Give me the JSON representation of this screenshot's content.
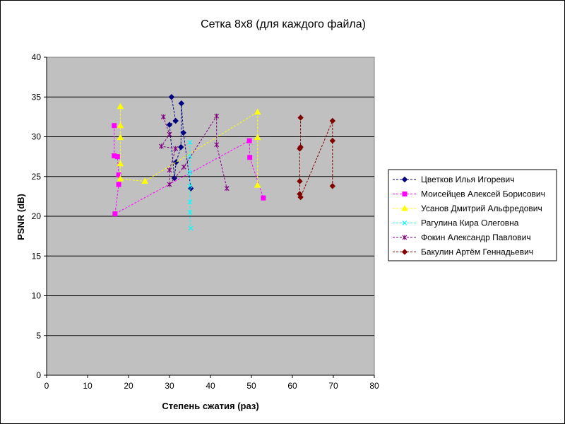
{
  "chart_data": {
    "type": "scatter",
    "title": "Сетка 8x8 (для каждого файла)",
    "xlabel": "Степень сжатия (раз)",
    "ylabel": "PSNR (dB)",
    "xlim": [
      0,
      80
    ],
    "ylim": [
      0,
      40
    ],
    "xticks": [
      0,
      10,
      20,
      30,
      40,
      50,
      60,
      70,
      80
    ],
    "yticks": [
      0,
      5,
      10,
      15,
      20,
      25,
      30,
      35,
      40
    ],
    "grid": "horizontal",
    "plot_background": "#c0c0c0",
    "legend_position": "right",
    "series": [
      {
        "name": "Цветков Илья Игоревич",
        "color": "#000080",
        "marker": "diamond",
        "points": [
          [
            30.5,
            35.0
          ],
          [
            31.5,
            32.0
          ],
          [
            30.0,
            31.5
          ],
          [
            31.2,
            24.8
          ],
          [
            31.6,
            26.8
          ],
          [
            32.8,
            28.7
          ],
          [
            32.9,
            34.2
          ],
          [
            33.4,
            30.5
          ],
          [
            35.2,
            23.5
          ]
        ]
      },
      {
        "name": "Моисейцев Алексей Борисович",
        "color": "#ff00ff",
        "marker": "square",
        "points": [
          [
            16.5,
            31.4
          ],
          [
            16.5,
            27.6
          ],
          [
            17.3,
            27.5
          ],
          [
            17.6,
            25.2
          ],
          [
            17.6,
            24.0
          ],
          [
            16.7,
            20.3
          ],
          [
            49.5,
            29.5
          ],
          [
            49.6,
            27.4
          ],
          [
            52.9,
            22.3
          ]
        ]
      },
      {
        "name": "Усанов Дмитрий Альфредович",
        "color": "#ffff00",
        "marker": "triangle",
        "points": [
          [
            18.0,
            33.8
          ],
          [
            18.0,
            31.4
          ],
          [
            18.0,
            29.9
          ],
          [
            18.0,
            26.6
          ],
          [
            18.0,
            24.7
          ],
          [
            24.0,
            24.4
          ],
          [
            51.5,
            33.1
          ],
          [
            51.5,
            29.9
          ],
          [
            51.5,
            23.9
          ]
        ]
      },
      {
        "name": "Рагулина Кира Олеговна",
        "color": "#00ffff",
        "marker": "x",
        "points": [
          [
            35.0,
            29.3
          ],
          [
            35.0,
            27.5
          ],
          [
            35.0,
            25.5
          ],
          [
            35.0,
            23.8
          ],
          [
            35.0,
            21.8
          ],
          [
            35.0,
            20.5
          ],
          [
            35.2,
            18.5
          ]
        ]
      },
      {
        "name": "Фокин Александр Павлович",
        "color": "#800080",
        "marker": "star",
        "points": [
          [
            28.5,
            32.5
          ],
          [
            30.0,
            30.3
          ],
          [
            28.0,
            28.8
          ],
          [
            31.5,
            28.5
          ],
          [
            30.0,
            25.8
          ],
          [
            30.0,
            24.0
          ],
          [
            33.5,
            26.2
          ],
          [
            41.5,
            32.6
          ],
          [
            41.5,
            29.0
          ],
          [
            44.0,
            23.5
          ]
        ]
      },
      {
        "name": "Бакулин Артём Геннадьевич",
        "color": "#800000",
        "marker": "diamond",
        "points": [
          [
            62.0,
            32.4
          ],
          [
            62.0,
            28.7
          ],
          [
            61.8,
            28.5
          ],
          [
            61.8,
            24.4
          ],
          [
            61.8,
            22.8
          ],
          [
            62.0,
            22.4
          ],
          [
            69.8,
            32.0
          ],
          [
            69.8,
            29.5
          ],
          [
            69.8,
            23.8
          ]
        ]
      }
    ]
  }
}
